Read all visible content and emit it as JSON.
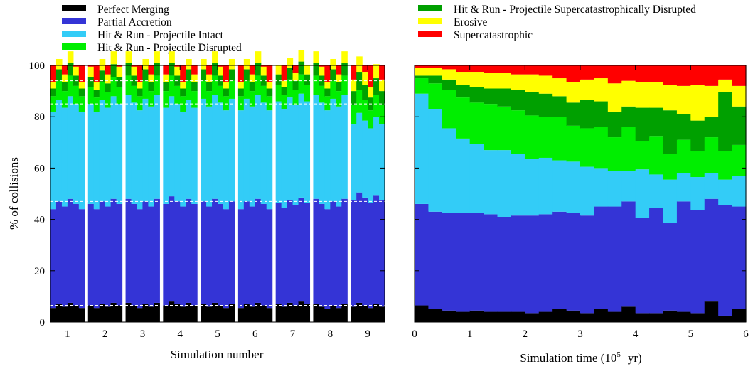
{
  "legend": [
    {
      "label": "Perfect Merging",
      "color": "#000000"
    },
    {
      "label": "Partial Accretion",
      "color": "#3434d6"
    },
    {
      "label": "Hit & Run - Projectile Intact",
      "color": "#33ccf7"
    },
    {
      "label": "Hit & Run - Projectile Disrupted",
      "color": "#00ee00"
    },
    {
      "label": "Hit & Run - Projectile Supercatastrophically Disrupted",
      "color": "#00a000"
    },
    {
      "label": "Erosive",
      "color": "#ffff00"
    },
    {
      "label": "Supercatastrophic",
      "color": "#ff0000"
    }
  ],
  "chart_data": [
    {
      "type": "bar",
      "stacked": true,
      "xlabel": "Simulation number",
      "ylabel": "% of collisions",
      "ylim": [
        0,
        100
      ],
      "yticks": [
        "0",
        "20",
        "40",
        "60",
        "80",
        "100"
      ],
      "categories": [
        "1",
        "2",
        "3",
        "4",
        "5",
        "6",
        "7",
        "8",
        "9"
      ],
      "reference_lines_y": [
        6.5,
        47,
        85,
        94
      ],
      "series": [
        {
          "name": "Perfect Merging",
          "values": [
            6.5,
            6.5,
            6.5,
            7,
            6.5,
            6.5,
            7,
            6,
            6.5
          ]
        },
        {
          "name": "Partial Accretion",
          "values": [
            39.5,
            39.5,
            39.5,
            40,
            39.5,
            39.5,
            39.5,
            40,
            42
          ]
        },
        {
          "name": "Hit & Run - Projectile Intact",
          "values": [
            39,
            39,
            39.5,
            38,
            39.5,
            39.5,
            39.5,
            39.5,
            30
          ]
        },
        {
          "name": "Hit & Run - Projectile Disrupted",
          "values": [
            7,
            6.5,
            6.5,
            7,
            6.5,
            6.5,
            6.5,
            6.5,
            8
          ]
        },
        {
          "name": "Hit & Run - Projectile Supercatastrophically Disrupted",
          "values": [
            4,
            4,
            4,
            4,
            4,
            4,
            4,
            4,
            6
          ]
        },
        {
          "name": "Erosive",
          "values": [
            3.5,
            4,
            3.5,
            3.5,
            3.5,
            3.5,
            3.5,
            3.5,
            5
          ]
        },
        {
          "name": "Supercatastrophic",
          "values": [
            0.5,
            0.5,
            0.5,
            0.5,
            0.5,
            0.5,
            0.5,
            0.5,
            1.5
          ]
        }
      ]
    },
    {
      "type": "bar",
      "stacked": true,
      "xlabel": "Simulation time (10",
      "xlabel_sup": "5",
      "xlabel_unit": "yr)",
      "xlim": [
        0,
        6
      ],
      "xticks": [
        "0",
        "1",
        "2",
        "3",
        "4",
        "5",
        "6"
      ],
      "ylim": [
        0,
        100
      ],
      "x": [
        0.125,
        0.375,
        0.625,
        0.875,
        1.125,
        1.375,
        1.625,
        1.875,
        2.125,
        2.375,
        2.625,
        2.875,
        3.125,
        3.375,
        3.625,
        3.875,
        4.125,
        4.375,
        4.625,
        4.875,
        5.125,
        5.375,
        5.625,
        5.875
      ],
      "series": [
        {
          "name": "Perfect Merging",
          "values": [
            6.5,
            5,
            4.5,
            4,
            4.5,
            4,
            4,
            4,
            3.5,
            4,
            5,
            4.5,
            3.5,
            5,
            4,
            6,
            3.5,
            3.5,
            4.5,
            4,
            3.5,
            8,
            2.5,
            5
          ]
        },
        {
          "name": "Partial Accretion",
          "values": [
            39.5,
            38,
            38,
            38.5,
            38,
            38,
            37,
            37.5,
            38,
            38,
            38,
            38,
            38,
            40,
            41,
            41,
            37,
            41,
            34,
            43,
            40,
            40,
            43,
            40
          ]
        },
        {
          "name": "Hit & Run - Projectile Intact",
          "values": [
            43,
            40,
            33,
            29,
            27,
            25,
            26,
            24,
            22,
            22,
            20,
            20,
            19,
            15,
            14,
            12,
            19,
            13,
            17,
            11,
            13,
            10,
            10,
            12
          ]
        },
        {
          "name": "Hit & Run - Projectile Disrupted",
          "values": [
            6,
            10,
            15,
            16,
            16,
            18,
            17,
            17,
            17,
            16,
            17,
            14,
            15,
            16,
            13,
            17,
            11,
            15,
            10,
            13,
            10,
            14,
            11,
            12
          ]
        },
        {
          "name": "Hit & Run - Projectile Supercatastrophically Disrupted",
          "values": [
            1,
            3,
            4,
            5,
            6,
            6,
            7,
            8,
            9,
            9,
            8,
            9,
            11,
            10,
            10,
            8,
            13,
            11,
            17,
            10,
            12,
            8,
            23,
            15
          ]
        },
        {
          "name": "Erosive",
          "values": [
            3,
            3,
            4,
            5,
            6,
            6,
            6,
            6,
            7,
            7,
            7,
            8,
            8,
            9,
            11,
            10,
            10,
            10,
            10,
            11,
            14,
            12,
            5,
            8
          ]
        },
        {
          "name": "Supercatastrophic",
          "values": [
            1,
            1,
            1.5,
            2.5,
            2.5,
            3,
            3,
            3.5,
            3.5,
            4,
            5,
            6.5,
            5.5,
            5,
            7,
            6,
            6.5,
            6.5,
            7.5,
            8,
            7.5,
            8,
            5.5,
            8
          ]
        }
      ]
    }
  ]
}
